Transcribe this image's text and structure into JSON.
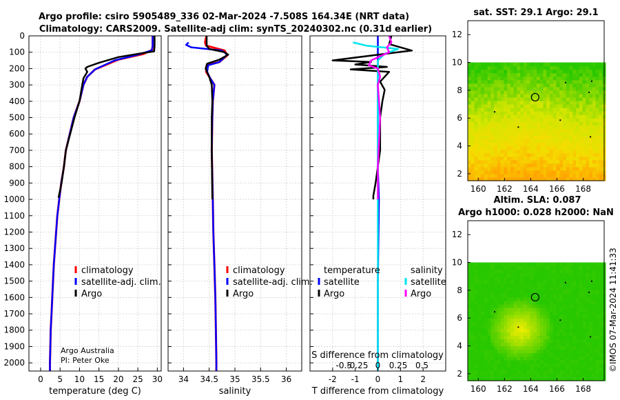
{
  "title_line1": "Argo profile: csiro 5905489_336 02-Mar-2024 -7.508S 164.34E (NRT data)",
  "title_line2": "Climatology: CARS2009. Satellite-adj clim: synTS_20240302.nc (0.31d earlier)",
  "sst_title": "sat. SST: 29.1 Argo: 29.1",
  "sla_title1": "Altim. SLA: 0.087",
  "sla_title2": "Argo h1000: 0.028 h2000: NaN",
  "credit1": "Argo Australia",
  "credit2": "PI: Peter Oke",
  "imos_stamp": "©IMOS 07-Mar-2024 11:41:33",
  "colors": {
    "climatology": "#ff0000",
    "satellite": "#0000ff",
    "argo": "#000000",
    "sal_satellite": "#00e5ee",
    "sal_argo": "#ff00ff"
  },
  "chart_data": [
    {
      "type": "line",
      "name": "temperature",
      "xlabel": "temperature (deg C)",
      "ylabel": "",
      "xlim": [
        -3,
        31
      ],
      "ylim": [
        0,
        2050
      ],
      "xticks": [
        0,
        5,
        10,
        15,
        20,
        25,
        30
      ],
      "yticks": [
        0,
        100,
        200,
        300,
        400,
        500,
        600,
        700,
        800,
        900,
        1000,
        1100,
        1200,
        1300,
        1400,
        1500,
        1600,
        1700,
        1800,
        1900,
        2000
      ],
      "legend": [
        "climatology",
        "satellite-adj. clim.",
        "Argo"
      ],
      "series": [
        {
          "name": "climatology",
          "points": [
            [
              28.8,
              0
            ],
            [
              28.8,
              60
            ],
            [
              28.7,
              85
            ],
            [
              26.5,
              110
            ],
            [
              20,
              145
            ],
            [
              14,
              205
            ],
            [
              12,
              250
            ],
            [
              11,
              300
            ],
            [
              10,
              400
            ],
            [
              8.5,
              500
            ],
            [
              7.5,
              600
            ],
            [
              6.5,
              700
            ],
            [
              6,
              800
            ],
            [
              5.3,
              900
            ],
            [
              4.8,
              1000
            ],
            [
              4.3,
              1100
            ],
            [
              4,
              1200
            ],
            [
              3.7,
              1300
            ],
            [
              3.4,
              1400
            ],
            [
              3.2,
              1500
            ],
            [
              3,
              1600
            ],
            [
              2.8,
              1700
            ],
            [
              2.6,
              1800
            ],
            [
              2.5,
              1900
            ],
            [
              2.4,
              2000
            ],
            [
              2.4,
              2050
            ]
          ]
        },
        {
          "name": "satellite-adj. clim.",
          "points": [
            [
              28.8,
              0
            ],
            [
              28.8,
              60
            ],
            [
              28.6,
              88
            ],
            [
              25,
              115
            ],
            [
              19,
              150
            ],
            [
              14,
              205
            ],
            [
              12,
              250
            ],
            [
              11,
              300
            ],
            [
              10,
              400
            ],
            [
              8.5,
              500
            ],
            [
              7.5,
              600
            ],
            [
              6.5,
              700
            ],
            [
              6,
              800
            ],
            [
              5.3,
              900
            ],
            [
              4.8,
              1000
            ],
            [
              4.3,
              1100
            ],
            [
              4,
              1200
            ],
            [
              3.7,
              1300
            ],
            [
              3.4,
              1400
            ],
            [
              3.2,
              1500
            ],
            [
              3,
              1600
            ],
            [
              2.8,
              1700
            ],
            [
              2.6,
              1800
            ],
            [
              2.5,
              1900
            ],
            [
              2.4,
              2000
            ],
            [
              2.4,
              2050
            ]
          ]
        },
        {
          "name": "Argo",
          "points": [
            [
              29.3,
              0
            ],
            [
              29.3,
              60
            ],
            [
              29.2,
              95
            ],
            [
              27,
              102
            ],
            [
              20,
              130
            ],
            [
              15,
              165
            ],
            [
              12,
              190
            ],
            [
              11.5,
              200
            ],
            [
              12,
              220
            ],
            [
              11,
              260
            ],
            [
              10.7,
              300
            ],
            [
              10,
              400
            ],
            [
              8.7,
              500
            ],
            [
              7.6,
              600
            ],
            [
              6.5,
              700
            ],
            [
              6,
              800
            ],
            [
              5.4,
              900
            ],
            [
              4.6,
              990
            ]
          ]
        }
      ]
    },
    {
      "type": "line",
      "name": "salinity",
      "xlabel": "salinity",
      "xlim": [
        33.7,
        36.3
      ],
      "ylim": [
        0,
        2050
      ],
      "xticks": [
        34,
        34.5,
        35,
        35.5,
        36
      ],
      "xticklabels": [
        "34",
        "34.5",
        "35",
        "35.5",
        "36"
      ],
      "legend": [
        "climatology",
        "satellite-adj. clim.",
        "Argo"
      ],
      "series": [
        {
          "name": "climatology",
          "points": [
            [
              34.45,
              0
            ],
            [
              34.43,
              20
            ],
            [
              34.42,
              40
            ],
            [
              34.44,
              60
            ],
            [
              34.8,
              90
            ],
            [
              34.85,
              120
            ],
            [
              34.7,
              160
            ],
            [
              34.45,
              180
            ],
            [
              34.44,
              220
            ],
            [
              34.52,
              260
            ],
            [
              34.6,
              300
            ],
            [
              34.57,
              400
            ],
            [
              34.56,
              500
            ],
            [
              34.55,
              700
            ],
            [
              34.57,
              1000
            ],
            [
              34.58,
              1200
            ],
            [
              34.6,
              1400
            ],
            [
              34.62,
              1600
            ],
            [
              34.63,
              1800
            ],
            [
              34.64,
              2000
            ],
            [
              34.64,
              2050
            ]
          ]
        },
        {
          "name": "satellite-adj. clim.",
          "points": [
            [
              34.1,
              40
            ],
            [
              34.05,
              55
            ],
            [
              34.15,
              70
            ],
            [
              34.75,
              90
            ],
            [
              34.85,
              115
            ],
            [
              34.7,
              160
            ],
            [
              34.48,
              180
            ],
            [
              34.46,
              220
            ],
            [
              34.52,
              260
            ],
            [
              34.6,
              300
            ],
            [
              34.57,
              400
            ],
            [
              34.56,
              500
            ],
            [
              34.55,
              700
            ],
            [
              34.57,
              1000
            ],
            [
              34.58,
              1200
            ],
            [
              34.6,
              1400
            ],
            [
              34.62,
              1600
            ],
            [
              34.63,
              1800
            ],
            [
              34.64,
              2000
            ],
            [
              34.64,
              2050
            ]
          ]
        },
        {
          "name": "Argo",
          "points": [
            [
              34.45,
              0
            ],
            [
              34.45,
              60
            ],
            [
              34.5,
              80
            ],
            [
              34.8,
              100
            ],
            [
              34.87,
              115
            ],
            [
              34.7,
              145
            ],
            [
              34.46,
              170
            ],
            [
              34.43,
              200
            ],
            [
              34.47,
              230
            ],
            [
              34.5,
              250
            ],
            [
              34.55,
              300
            ],
            [
              34.56,
              400
            ],
            [
              34.55,
              500
            ],
            [
              34.55,
              700
            ],
            [
              34.56,
              1000
            ]
          ]
        }
      ]
    },
    {
      "type": "line",
      "name": "differences",
      "xlabel": "T difference from climatology",
      "xlabel2": "S difference from climatology",
      "xlim": [
        -3,
        3
      ],
      "ylim": [
        0,
        2050
      ],
      "xticks": [
        -2,
        -1,
        0,
        1,
        2
      ],
      "s_ticklabels": [
        "-0.5",
        "-0.25",
        "0",
        "0.25",
        "0.5"
      ],
      "legend_t_title": "temperature",
      "legend_s_title": "salinity",
      "legend_t": [
        "satellite",
        "Argo"
      ],
      "legend_s": [
        "satellite",
        "Argo"
      ],
      "series": [
        {
          "name": "T satellite",
          "points": [
            [
              0,
              0
            ],
            [
              0,
              200
            ],
            [
              0,
              400
            ],
            [
              0,
              800
            ],
            [
              0.05,
              1000
            ],
            [
              0,
              1500
            ],
            [
              0,
              2050
            ]
          ]
        },
        {
          "name": "T Argo",
          "points": [
            [
              0.6,
              0
            ],
            [
              0.5,
              50
            ],
            [
              1.5,
              90
            ],
            [
              0.3,
              110
            ],
            [
              -2,
              150
            ],
            [
              -0.3,
              160
            ],
            [
              -1,
              175
            ],
            [
              0.4,
              190
            ],
            [
              -1.2,
              205
            ],
            [
              0.5,
              220
            ],
            [
              0.3,
              250
            ],
            [
              0.1,
              280
            ],
            [
              0.3,
              330
            ],
            [
              0.2,
              400
            ],
            [
              0.1,
              500
            ],
            [
              0.1,
              600
            ],
            [
              0.1,
              700
            ],
            [
              0,
              800
            ],
            [
              -0.1,
              900
            ],
            [
              -0.2,
              980
            ],
            [
              -0.2,
              1000
            ]
          ]
        },
        {
          "name": "S satellite",
          "points": [
            [
              -1.1,
              40
            ],
            [
              -0.5,
              60
            ],
            [
              0.9,
              80
            ],
            [
              0.3,
              110
            ],
            [
              0,
              150
            ],
            [
              0,
              300
            ],
            [
              0,
              600
            ],
            [
              0,
              2050
            ]
          ]
        },
        {
          "name": "S Argo",
          "points": [
            [
              0.5,
              0
            ],
            [
              0.6,
              40
            ],
            [
              0.4,
              70
            ],
            [
              0.5,
              100
            ],
            [
              -0.3,
              150
            ],
            [
              -0.4,
              180
            ],
            [
              0,
              200
            ],
            [
              0.1,
              250
            ],
            [
              0,
              300
            ],
            [
              0.1,
              500
            ],
            [
              0,
              800
            ],
            [
              0,
              1000
            ]
          ]
        }
      ]
    },
    {
      "type": "heatmap",
      "name": "sst_map",
      "xlim": [
        159.2,
        169.6
      ],
      "ylim": [
        1.5,
        13
      ],
      "xticks": [
        160,
        162,
        164,
        166,
        168
      ],
      "yticks": [
        2,
        4,
        6,
        8,
        10,
        12
      ],
      "data_top": 10,
      "argo_position": [
        164.34,
        7.5
      ]
    },
    {
      "type": "heatmap",
      "name": "sla_map",
      "xlim": [
        159.2,
        169.6
      ],
      "ylim": [
        1.5,
        13
      ],
      "xticks": [
        160,
        162,
        164,
        166,
        168
      ],
      "yticks": [
        2,
        4,
        6,
        8,
        10,
        12
      ],
      "data_top": 10,
      "argo_position": [
        164.34,
        7.5
      ]
    }
  ]
}
